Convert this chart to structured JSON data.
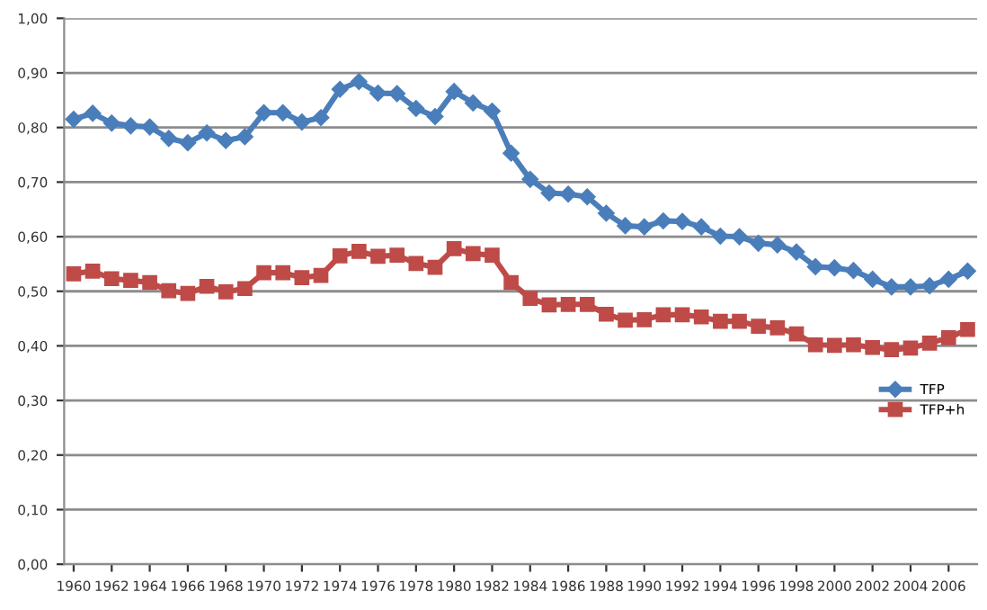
{
  "chart_data": {
    "type": "line",
    "x": [
      1960,
      1961,
      1962,
      1963,
      1964,
      1965,
      1966,
      1967,
      1968,
      1969,
      1970,
      1971,
      1972,
      1973,
      1974,
      1975,
      1976,
      1977,
      1978,
      1979,
      1980,
      1981,
      1982,
      1983,
      1984,
      1985,
      1986,
      1987,
      1988,
      1989,
      1990,
      1991,
      1992,
      1993,
      1994,
      1995,
      1996,
      1997,
      1998,
      1999,
      2000,
      2001,
      2002,
      2003,
      2004,
      2005,
      2006,
      2007
    ],
    "series": [
      {
        "name": "TFP",
        "color": "#4a7ebb",
        "marker": "diamond",
        "values": [
          0.815,
          0.826,
          0.808,
          0.803,
          0.801,
          0.78,
          0.772,
          0.79,
          0.776,
          0.783,
          0.827,
          0.827,
          0.81,
          0.818,
          0.87,
          0.884,
          0.863,
          0.862,
          0.835,
          0.82,
          0.866,
          0.845,
          0.83,
          0.753,
          0.705,
          0.68,
          0.678,
          0.673,
          0.643,
          0.62,
          0.618,
          0.629,
          0.628,
          0.618,
          0.601,
          0.6,
          0.588,
          0.585,
          0.572,
          0.545,
          0.543,
          0.538,
          0.522,
          0.508,
          0.508,
          0.51,
          0.522,
          0.537
        ]
      },
      {
        "name": "TFP+h",
        "color": "#be4b48",
        "marker": "square",
        "values": [
          0.532,
          0.537,
          0.523,
          0.52,
          0.516,
          0.501,
          0.496,
          0.509,
          0.499,
          0.505,
          0.534,
          0.534,
          0.525,
          0.529,
          0.565,
          0.573,
          0.564,
          0.566,
          0.551,
          0.544,
          0.578,
          0.569,
          0.566,
          0.516,
          0.487,
          0.475,
          0.476,
          0.476,
          0.458,
          0.447,
          0.448,
          0.457,
          0.457,
          0.453,
          0.445,
          0.445,
          0.436,
          0.433,
          0.422,
          0.402,
          0.401,
          0.402,
          0.397,
          0.393,
          0.396,
          0.405,
          0.415,
          0.43
        ]
      }
    ],
    "xlim": [
      1959.5,
      2007.5
    ],
    "xticks": [
      1960,
      1962,
      1964,
      1966,
      1968,
      1970,
      1972,
      1974,
      1976,
      1978,
      1980,
      1982,
      1984,
      1986,
      1988,
      1990,
      1992,
      1994,
      1996,
      1998,
      2000,
      2002,
      2004,
      2006
    ],
    "ylim": [
      0,
      1
    ],
    "yticks": [
      {
        "value": 0,
        "label": "0,00"
      },
      {
        "value": 0.1,
        "label": "0,10"
      },
      {
        "value": 0.2,
        "label": "0,20"
      },
      {
        "value": 0.3,
        "label": "0,30"
      },
      {
        "value": 0.4,
        "label": "0,40"
      },
      {
        "value": 0.5,
        "label": "0,50"
      },
      {
        "value": 0.6,
        "label": "0,60"
      },
      {
        "value": 0.7,
        "label": "0,70"
      },
      {
        "value": 0.8,
        "label": "0,80"
      },
      {
        "value": 0.9,
        "label": "0,90"
      },
      {
        "value": 1,
        "label": "1,00"
      }
    ],
    "grid": "y",
    "legend": "right",
    "line_style": "solid"
  }
}
